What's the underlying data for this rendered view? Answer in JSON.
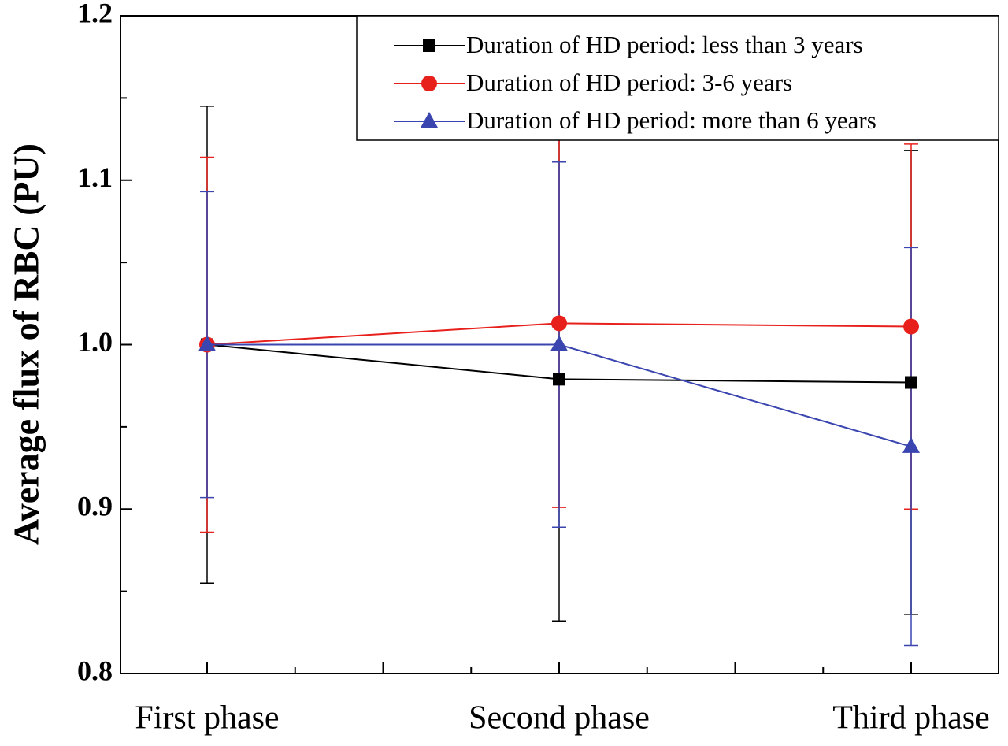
{
  "chart_data": {
    "type": "line",
    "ylabel": "Average flux of RBC (PU)",
    "categories": [
      "First phase",
      "Second phase",
      "Third phase"
    ],
    "series": [
      {
        "name": "Duration of HD period: less than 3 years",
        "color": "#000000",
        "marker": "square",
        "values": [
          1.0,
          0.979,
          0.977
        ],
        "errors": [
          0.145,
          0.147,
          0.141
        ]
      },
      {
        "name": "Duration of HD period: 3-6 years",
        "color": "#e8201c",
        "marker": "circle",
        "values": [
          1.0,
          1.013,
          1.011
        ],
        "errors": [
          0.114,
          0.112,
          0.111
        ]
      },
      {
        "name": "Duration of HD period: more than 6 years",
        "color": "#3a45b0",
        "marker": "triangle",
        "values": [
          1.0,
          1.0,
          0.938
        ],
        "errors": [
          0.093,
          0.111,
          0.121
        ]
      }
    ],
    "ylim": [
      0.8,
      1.2
    ],
    "yticks": [
      0.8,
      0.9,
      {
        "value": 1,
        "label": "1.0"
      },
      1.1,
      1.2
    ],
    "legend": "upper right"
  }
}
